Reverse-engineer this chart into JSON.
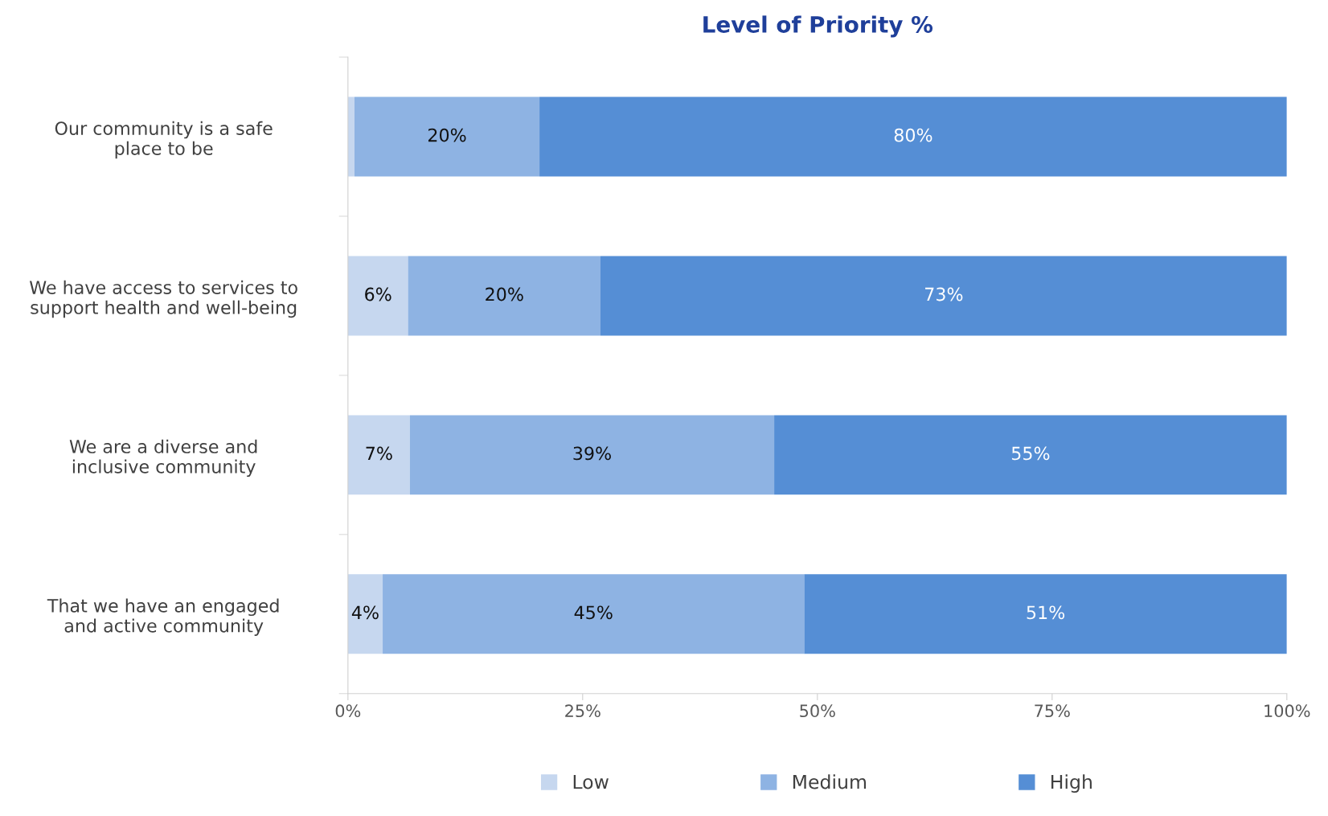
{
  "chart_data": {
    "type": "bar",
    "orientation": "horizontal",
    "stacked": true,
    "title": "Level of Priority %",
    "categories": [
      "Our community is a safe\nplace to be",
      "We have access to services to\nsupport health and well-being",
      "We are a diverse and\ninclusive community",
      "That we have an engaged\nand active community"
    ],
    "series": [
      {
        "name": "Low",
        "color": "#c6d7ef",
        "values": [
          0.7,
          6.4,
          6.6,
          3.7
        ],
        "value_labels": [
          null,
          "6%",
          "7%",
          "4%"
        ]
      },
      {
        "name": "Medium",
        "color": "#8eb3e3",
        "values": [
          19.7,
          20.5,
          38.8,
          44.9
        ],
        "value_labels": [
          "20%",
          "20%",
          "39%",
          "45%"
        ]
      },
      {
        "name": "High",
        "color": "#558ed5",
        "values": [
          79.6,
          73.1,
          54.6,
          51.4
        ],
        "value_labels": [
          "80%",
          "73%",
          "55%",
          "51%"
        ]
      }
    ],
    "xlim": [
      0,
      100
    ],
    "xticks": [
      {
        "value": 0,
        "label": "0%"
      },
      {
        "value": 25,
        "label": "25%"
      },
      {
        "value": 50,
        "label": "50%"
      },
      {
        "value": 75,
        "label": "75%"
      },
      {
        "value": 100,
        "label": "100%"
      }
    ],
    "grid": false,
    "legend": "bottom"
  }
}
